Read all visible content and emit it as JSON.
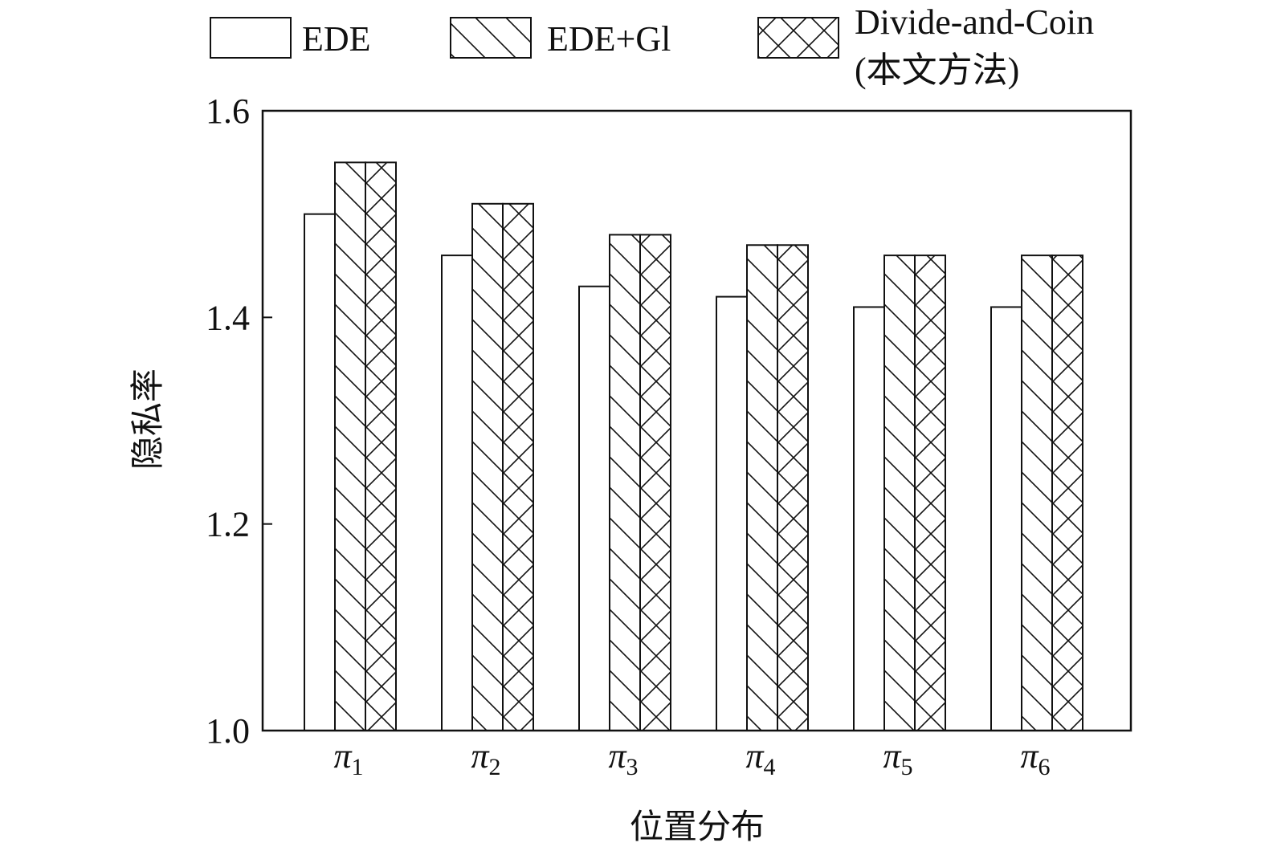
{
  "chart_data": {
    "type": "bar",
    "title": "",
    "xlabel": "位置分布",
    "ylabel": "隐私率",
    "ylim": [
      1.0,
      1.6
    ],
    "yticks": [
      "1.0",
      "1.2",
      "1.4",
      "1.6"
    ],
    "grid": false,
    "legend_position": "top",
    "categories": [
      {
        "base": "π",
        "sub": "1"
      },
      {
        "base": "π",
        "sub": "2"
      },
      {
        "base": "π",
        "sub": "3"
      },
      {
        "base": "π",
        "sub": "4"
      },
      {
        "base": "π",
        "sub": "5"
      },
      {
        "base": "π",
        "sub": "6"
      }
    ],
    "series": [
      {
        "name": "EDE",
        "pattern": "none",
        "values": [
          1.5,
          1.46,
          1.43,
          1.42,
          1.41,
          1.41
        ]
      },
      {
        "name": "EDE+Gl",
        "pattern": "diagonal",
        "values": [
          1.55,
          1.51,
          1.48,
          1.47,
          1.46,
          1.46
        ]
      },
      {
        "name": "Divide-and-Coin",
        "name_line2": "(本文方法)",
        "pattern": "crosshatch",
        "values": [
          1.55,
          1.51,
          1.48,
          1.47,
          1.46,
          1.46
        ]
      }
    ],
    "colors": {
      "stroke": "#111111",
      "fill": "#ffffff"
    }
  }
}
